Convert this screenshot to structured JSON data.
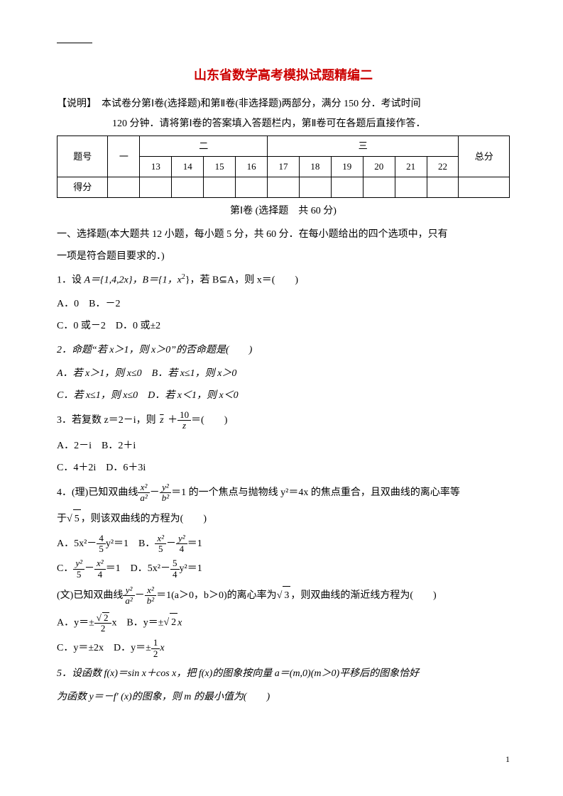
{
  "colors": {
    "title": "#cc0000",
    "text": "#000000",
    "background": "#ffffff",
    "border": "#000000"
  },
  "fonts": {
    "title_family": "SimHei",
    "body_family": "SimSun",
    "title_size_pt": 18,
    "body_size_pt": 14
  },
  "title": "山东省数学高考模拟试题精编二",
  "instruction_line1": "【说明】　本试卷分第Ⅰ卷(选择题)和第Ⅱ卷(非选择题)两部分，满分 150 分．考试时间",
  "instruction_line2": "120 分钟．请将第Ⅰ卷的答案填入答题栏内，第Ⅱ卷可在各题后直接作答．",
  "score_table": {
    "headers": [
      "题号",
      "一",
      "二",
      "三",
      "总分"
    ],
    "sub_cols": [
      "13",
      "14",
      "15",
      "16",
      "17",
      "18",
      "19",
      "20",
      "21",
      "22"
    ],
    "row2_label": "得分",
    "col_count": 12
  },
  "part_header": "第Ⅰ卷 (选择题　共 60 分)",
  "section_intro_l1": "一、选择题(本大题共 12 小题，每小题 5 分，共 60 分．在每小题给出的四个选项中，只有",
  "section_intro_l2": "一项是符合题目要求的．)",
  "q1": {
    "stem_pre": "1．设 ",
    "stem_mid1": "A＝{1,4,2x}，B＝{1，x",
    "stem_mid2": "}，若 B⊆A，则 x＝(　　)",
    "optAB": "A．0　B．－2",
    "optCD": "C．0 或－2　D．0 或±2"
  },
  "q2": {
    "stem": "2．命题“若 x＞1，则 x＞0”的否命题是(　　)",
    "optAB": "A．若 x＞1，则 x≤0　B．若 x≤1，则 x＞0",
    "optCD": "C．若 x≤1，则 x≤0　D．若 x＜1，则 x＜0"
  },
  "q3": {
    "stem_pre": "3．若复数 z＝2－i，则 ",
    "stem_bar": "z",
    "stem_plus": " ＋",
    "frac_num": "10",
    "frac_den": "z",
    "stem_post": "＝(　　)",
    "optAB": "A．2－i　B．2＋i",
    "optCD": "C．4＋2i　D．6＋3i"
  },
  "q4": {
    "li_pre": "4．(理)已知双曲线",
    "li_f1_num": "x²",
    "li_f1_den": "a²",
    "li_minus": "－",
    "li_f2_num": "y²",
    "li_f2_den": "b²",
    "li_eq": "＝1 的一个焦点与抛物线 y²＝4x 的焦点重合，且双曲线的离心率等",
    "li_line2_pre": "于",
    "li_sqrt": "5",
    "li_line2_post": "，则该双曲线的方程为(　　)",
    "optA_pre": "A．5x²－",
    "optA_fnum": "4",
    "optA_fden": "5",
    "optA_post": "y²＝1　B．",
    "optB_f1num": "x²",
    "optB_f1den": "5",
    "optB_minus": "－",
    "optB_f2num": "y²",
    "optB_f2den": "4",
    "optB_post": "＝1",
    "optC_pre": "C．",
    "optC_f1num": "y²",
    "optC_f1den": "5",
    "optC_minus": "－",
    "optC_f2num": "x²",
    "optC_f2den": "4",
    "optC_post": "＝1　D．5x²－",
    "optD_fnum": "5",
    "optD_fden": "4",
    "optD_post": "y²＝1",
    "wen_pre": "(文)已知双曲线",
    "wen_f1num": "y²",
    "wen_f1den": "a²",
    "wen_minus": "－",
    "wen_f2num": "x²",
    "wen_f2den": "b²",
    "wen_mid": "＝1(a＞0，b＞0)的离心率为",
    "wen_sqrt": "3",
    "wen_post": "，则双曲线的渐近线方程为(　　)",
    "wenA_pre": "A．y＝±",
    "wenA_fnum_sqrt": "2",
    "wenA_fden": "2",
    "wenA_post": "x　B．y＝±",
    "wenB_sqrt": "2",
    "wenB_post": "x",
    "wenC": "C．y＝±2x　D．y＝±",
    "wenD_fnum": "1",
    "wenD_fden": "2",
    "wenD_post": "x"
  },
  "q5": {
    "l1": "5．设函数 f(x)＝sin x＋cos x，把 f(x)的图象按向量 a＝(m,0)(m＞0)平移后的图象恰好",
    "l2": "为函数 y＝－f′ (x)的图象，则 m 的最小值为(　　)"
  },
  "page_number": "1"
}
